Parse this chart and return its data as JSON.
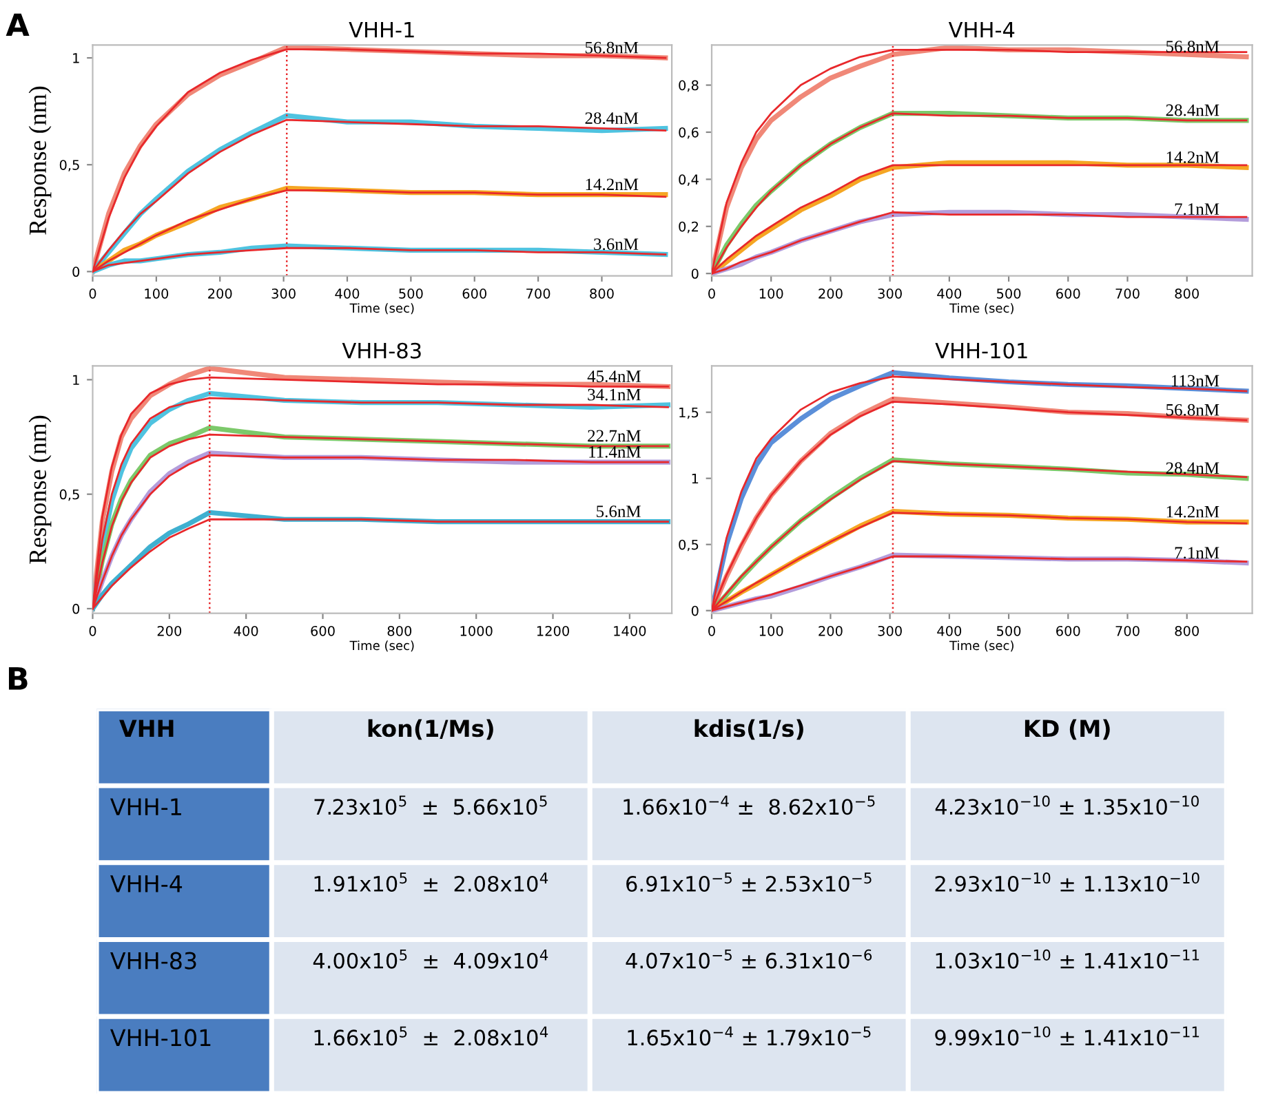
{
  "chart_data": [
    {
      "type": "line",
      "title": "VHH-1",
      "xlabel": "Time (sec)",
      "ylabel": "Response (nm)",
      "annotations": [
        "A"
      ],
      "xlim": [
        0,
        910
      ],
      "ylim": [
        -0.02,
        1.06
      ],
      "xticks": [
        0,
        100,
        200,
        300,
        400,
        500,
        600,
        700,
        800
      ],
      "yticks": [
        0,
        {
          "value": 0.5,
          "label": "0,5"
        },
        1
      ],
      "grid": false,
      "legend": false,
      "marker": "none",
      "line_style": "solid",
      "ref_lines": [
        {
          "axis": "x",
          "value": 305,
          "color": "#e8282b",
          "line_style": "dotted"
        }
      ],
      "x": [
        0,
        25,
        50,
        75,
        100,
        150,
        200,
        250,
        305,
        400,
        500,
        600,
        700,
        800,
        900
      ],
      "series": [
        {
          "name": "56.8nM",
          "color": "#f08878",
          "values": [
            0,
            0.27,
            0.46,
            0.59,
            0.69,
            0.83,
            0.92,
            0.98,
            1.05,
            1.04,
            1.03,
            1.02,
            1.01,
            1.01,
            1.0
          ]
        },
        {
          "color": "#e8282b",
          "values": [
            0,
            0.25,
            0.44,
            0.58,
            0.68,
            0.84,
            0.93,
            0.99,
            1.04,
            1.04,
            1.03,
            1.02,
            1.02,
            1.01,
            1.0
          ]
        },
        {
          "name": "28.4nM",
          "color": "#4fc3e0",
          "values": [
            0,
            0.09,
            0.18,
            0.27,
            0.34,
            0.47,
            0.57,
            0.65,
            0.73,
            0.7,
            0.7,
            0.68,
            0.67,
            0.66,
            0.67
          ]
        },
        {
          "color": "#e8282b",
          "values": [
            0,
            0.1,
            0.19,
            0.27,
            0.33,
            0.46,
            0.56,
            0.64,
            0.71,
            0.7,
            0.69,
            0.68,
            0.68,
            0.67,
            0.66
          ]
        },
        {
          "name": "14.2nM",
          "color": "#f5a623",
          "values": [
            0,
            0.05,
            0.1,
            0.13,
            0.17,
            0.23,
            0.3,
            0.34,
            0.39,
            0.38,
            0.37,
            0.37,
            0.36,
            0.36,
            0.36
          ]
        },
        {
          "color": "#e8282b",
          "values": [
            0,
            0.05,
            0.09,
            0.13,
            0.17,
            0.24,
            0.29,
            0.34,
            0.38,
            0.38,
            0.37,
            0.37,
            0.36,
            0.36,
            0.35
          ]
        },
        {
          "name": "3.6nM",
          "color": "#4fc3e0",
          "values": [
            0,
            0.03,
            0.05,
            0.05,
            0.06,
            0.08,
            0.09,
            0.11,
            0.12,
            0.11,
            0.1,
            0.1,
            0.1,
            0.09,
            0.08
          ]
        },
        {
          "color": "#e8282b",
          "values": [
            0,
            0.03,
            0.04,
            0.05,
            0.06,
            0.08,
            0.09,
            0.1,
            0.11,
            0.11,
            0.1,
            0.1,
            0.09,
            0.09,
            0.08
          ]
        }
      ]
    },
    {
      "type": "line",
      "title": "VHH-4",
      "xlabel": "Time (sec)",
      "xlim": [
        0,
        910
      ],
      "ylim": [
        -0.01,
        0.97
      ],
      "xticks": [
        0,
        100,
        200,
        300,
        400,
        500,
        600,
        700,
        800
      ],
      "yticks": [
        0,
        {
          "value": 0.2,
          "label": "0,2"
        },
        {
          "value": 0.4,
          "label": "0,4"
        },
        {
          "value": 0.6,
          "label": "0,6"
        },
        {
          "value": 0.8,
          "label": "0,8"
        }
      ],
      "grid": false,
      "legend": false,
      "marker": "none",
      "line_style": "solid",
      "ref_lines": [
        {
          "axis": "x",
          "value": 305,
          "color": "#e8282b",
          "line_style": "dotted"
        }
      ],
      "x": [
        0,
        25,
        50,
        75,
        100,
        150,
        200,
        250,
        305,
        400,
        500,
        600,
        700,
        800,
        900
      ],
      "series": [
        {
          "name": "56.8nM",
          "color": "#f08878",
          "values": [
            0,
            0.28,
            0.45,
            0.57,
            0.65,
            0.75,
            0.83,
            0.88,
            0.93,
            0.96,
            0.95,
            0.95,
            0.94,
            0.93,
            0.92
          ]
        },
        {
          "color": "#e8282b",
          "values": [
            0,
            0.3,
            0.47,
            0.6,
            0.68,
            0.8,
            0.87,
            0.92,
            0.95,
            0.95,
            0.95,
            0.94,
            0.94,
            0.94,
            0.94
          ]
        },
        {
          "name": "28.4nM",
          "color": "#7cc96a",
          "values": [
            0,
            0.12,
            0.21,
            0.29,
            0.35,
            0.46,
            0.55,
            0.62,
            0.68,
            0.68,
            0.67,
            0.66,
            0.66,
            0.65,
            0.65
          ]
        },
        {
          "color": "#e8282b",
          "values": [
            0,
            0.11,
            0.2,
            0.28,
            0.35,
            0.46,
            0.55,
            0.62,
            0.68,
            0.67,
            0.67,
            0.66,
            0.66,
            0.65,
            0.65
          ]
        },
        {
          "name": "14.2nM",
          "color": "#f5a623",
          "values": [
            0,
            0.05,
            0.1,
            0.15,
            0.19,
            0.27,
            0.33,
            0.4,
            0.45,
            0.47,
            0.47,
            0.47,
            0.46,
            0.46,
            0.45
          ]
        },
        {
          "color": "#e8282b",
          "values": [
            0,
            0.06,
            0.11,
            0.16,
            0.2,
            0.28,
            0.34,
            0.41,
            0.46,
            0.46,
            0.46,
            0.46,
            0.46,
            0.46,
            0.46
          ]
        },
        {
          "name": "7.1nM",
          "color": "#b39ddb",
          "values": [
            0,
            0.02,
            0.04,
            0.07,
            0.09,
            0.14,
            0.18,
            0.22,
            0.25,
            0.26,
            0.26,
            0.25,
            0.25,
            0.24,
            0.23
          ]
        },
        {
          "color": "#e8282b",
          "values": [
            0,
            0.02,
            0.05,
            0.07,
            0.09,
            0.14,
            0.18,
            0.22,
            0.26,
            0.25,
            0.25,
            0.25,
            0.24,
            0.24,
            0.24
          ]
        }
      ]
    },
    {
      "type": "line",
      "title": "VHH-83",
      "xlabel": "Time (sec)",
      "ylabel": "Response (nm)",
      "xlim": [
        0,
        1510
      ],
      "ylim": [
        -0.02,
        1.06
      ],
      "xticks": [
        0,
        200,
        400,
        600,
        800,
        1000,
        1200,
        1400
      ],
      "yticks": [
        0,
        {
          "value": 0.5,
          "label": "0,5"
        },
        1
      ],
      "grid": false,
      "legend": false,
      "marker": "none",
      "line_style": "solid",
      "ref_lines": [
        {
          "axis": "x",
          "value": 305,
          "color": "#e8282b",
          "line_style": "dotted"
        }
      ],
      "x": [
        0,
        25,
        50,
        75,
        100,
        150,
        200,
        250,
        305,
        500,
        700,
        900,
        1100,
        1300,
        1500
      ],
      "series": [
        {
          "name": "45.4nM",
          "color": "#f08878",
          "values": [
            0,
            0.38,
            0.6,
            0.75,
            0.83,
            0.93,
            0.98,
            1.02,
            1.05,
            1.01,
            1.0,
            0.99,
            0.98,
            0.98,
            0.97
          ]
        },
        {
          "color": "#e8282b",
          "values": [
            0,
            0.4,
            0.62,
            0.76,
            0.85,
            0.94,
            0.98,
            1.0,
            1.01,
            1.0,
            0.99,
            0.98,
            0.98,
            0.97,
            0.97
          ]
        },
        {
          "name": "34.1nM",
          "color": "#4fc3e0",
          "values": [
            0,
            0.27,
            0.47,
            0.6,
            0.7,
            0.81,
            0.87,
            0.91,
            0.94,
            0.91,
            0.9,
            0.9,
            0.89,
            0.88,
            0.89
          ]
        },
        {
          "color": "#e8282b",
          "values": [
            0,
            0.3,
            0.5,
            0.63,
            0.72,
            0.83,
            0.88,
            0.9,
            0.92,
            0.91,
            0.9,
            0.9,
            0.89,
            0.89,
            0.88
          ]
        },
        {
          "name": "22.7nM",
          "color": "#7cc96a",
          "values": [
            0,
            0.21,
            0.37,
            0.48,
            0.56,
            0.67,
            0.72,
            0.75,
            0.79,
            0.75,
            0.74,
            0.73,
            0.72,
            0.71,
            0.71
          ]
        },
        {
          "color": "#e8282b",
          "values": [
            0,
            0.2,
            0.36,
            0.47,
            0.55,
            0.66,
            0.71,
            0.74,
            0.76,
            0.75,
            0.74,
            0.73,
            0.72,
            0.71,
            0.71
          ]
        },
        {
          "name": "11.4nM",
          "color": "#b39ddb",
          "values": [
            0,
            0.12,
            0.23,
            0.32,
            0.39,
            0.51,
            0.59,
            0.64,
            0.68,
            0.66,
            0.66,
            0.65,
            0.64,
            0.64,
            0.64
          ]
        },
        {
          "color": "#e8282b",
          "values": [
            0,
            0.12,
            0.23,
            0.32,
            0.39,
            0.5,
            0.58,
            0.63,
            0.67,
            0.66,
            0.66,
            0.65,
            0.65,
            0.64,
            0.64
          ]
        },
        {
          "name": "5.6nM",
          "color": "#3fb0d0",
          "values": [
            0,
            0.06,
            0.11,
            0.15,
            0.19,
            0.27,
            0.33,
            0.37,
            0.42,
            0.39,
            0.39,
            0.38,
            0.38,
            0.38,
            0.38
          ]
        },
        {
          "color": "#e8282b",
          "values": [
            0,
            0.05,
            0.1,
            0.14,
            0.18,
            0.25,
            0.31,
            0.35,
            0.39,
            0.39,
            0.39,
            0.38,
            0.38,
            0.38,
            0.38
          ]
        }
      ]
    },
    {
      "type": "line",
      "title": "VHH-101",
      "xlabel": "Time (sec)",
      "xlim": [
        0,
        910
      ],
      "ylim": [
        -0.02,
        1.85
      ],
      "xticks": [
        0,
        100,
        200,
        300,
        400,
        500,
        600,
        700,
        800
      ],
      "yticks": [
        0,
        {
          "value": 0.5,
          "label": "0,5"
        },
        1,
        {
          "value": 1.5,
          "label": "1,5"
        }
      ],
      "grid": false,
      "legend": false,
      "marker": "none",
      "line_style": "solid",
      "ref_lines": [
        {
          "axis": "x",
          "value": 305,
          "color": "#e8282b",
          "line_style": "dotted"
        }
      ],
      "x": [
        0,
        25,
        50,
        75,
        100,
        150,
        200,
        250,
        305,
        400,
        500,
        600,
        700,
        800,
        900
      ],
      "series": [
        {
          "name": "113nM",
          "color": "#5b8fd9",
          "values": [
            0,
            0.5,
            0.85,
            1.1,
            1.27,
            1.45,
            1.6,
            1.7,
            1.8,
            1.76,
            1.73,
            1.71,
            1.7,
            1.68,
            1.66
          ]
        },
        {
          "color": "#e8282b",
          "values": [
            0,
            0.55,
            0.9,
            1.15,
            1.3,
            1.52,
            1.65,
            1.72,
            1.77,
            1.75,
            1.73,
            1.71,
            1.69,
            1.68,
            1.66
          ]
        },
        {
          "name": "56.8nM",
          "color": "#f08878",
          "values": [
            0,
            0.26,
            0.49,
            0.7,
            0.87,
            1.13,
            1.34,
            1.48,
            1.6,
            1.57,
            1.54,
            1.5,
            1.49,
            1.46,
            1.44
          ]
        },
        {
          "color": "#e8282b",
          "values": [
            0,
            0.27,
            0.5,
            0.7,
            0.87,
            1.13,
            1.33,
            1.47,
            1.58,
            1.56,
            1.53,
            1.5,
            1.48,
            1.46,
            1.44
          ]
        },
        {
          "name": "28.4nM",
          "color": "#7cc96a",
          "values": [
            0,
            0.12,
            0.25,
            0.37,
            0.48,
            0.68,
            0.85,
            1.0,
            1.14,
            1.11,
            1.09,
            1.07,
            1.04,
            1.03,
            1.0
          ]
        },
        {
          "color": "#e8282b",
          "values": [
            0,
            0.13,
            0.26,
            0.37,
            0.48,
            0.68,
            0.84,
            0.99,
            1.13,
            1.11,
            1.09,
            1.07,
            1.05,
            1.03,
            1.01
          ]
        },
        {
          "name": "14.2nM",
          "color": "#f5a623",
          "values": [
            0,
            0.07,
            0.14,
            0.2,
            0.27,
            0.4,
            0.52,
            0.64,
            0.75,
            0.73,
            0.72,
            0.7,
            0.69,
            0.67,
            0.67
          ]
        },
        {
          "color": "#e8282b",
          "values": [
            0,
            0.07,
            0.14,
            0.21,
            0.27,
            0.4,
            0.52,
            0.63,
            0.74,
            0.73,
            0.72,
            0.7,
            0.69,
            0.67,
            0.66
          ]
        },
        {
          "name": "7.1nM",
          "color": "#b39ddb",
          "values": [
            0,
            0.03,
            0.06,
            0.09,
            0.11,
            0.18,
            0.26,
            0.33,
            0.42,
            0.41,
            0.4,
            0.39,
            0.39,
            0.38,
            0.36
          ]
        },
        {
          "color": "#e8282b",
          "values": [
            0,
            0.03,
            0.06,
            0.09,
            0.12,
            0.19,
            0.26,
            0.33,
            0.41,
            0.41,
            0.4,
            0.39,
            0.39,
            0.38,
            0.37
          ]
        }
      ]
    },
    {
      "type": "other",
      "annotations": [
        "B"
      ],
      "categories": [
        "VHH",
        "kon(1/Ms)",
        "kdis(1/s)",
        "KD (M)"
      ],
      "y_categories": [
        "VHH-1",
        "VHH-4",
        "VHH-83",
        "VHH-101"
      ],
      "cell_labels": [
        [
          "7.23x10$^{5}$  ±  5.66x10$^{5}$",
          "1.66x10$^{−4}$ ±  8.62x10$^{−5}$",
          "4.23x10$^{−10}$ ± 1.35x10$^{−10}$"
        ],
        [
          "1.91x10$^{5}$  ±  2.08x10$^{4}$",
          "6.91x10$^{−5}$ ± 2.53x10$^{−5}$",
          "2.93x10$^{−10}$ ± 1.13x10$^{−10}$"
        ],
        [
          "4.00x10$^{5}$  ±  4.09x10$^{4}$",
          "4.07x10$^{−5}$ ± 6.31x10$^{−6}$",
          "1.03x10$^{−10}$ ± 1.41x10$^{−11}$"
        ],
        [
          "1.66x10$^{5}$  ±  2.08x10$^{4}$",
          "1.65x10$^{−4}$ ± 1.79x10$^{−5}$",
          "9.99x10$^{−10}$ ± 1.41x10$^{−11}$"
        ]
      ]
    }
  ]
}
